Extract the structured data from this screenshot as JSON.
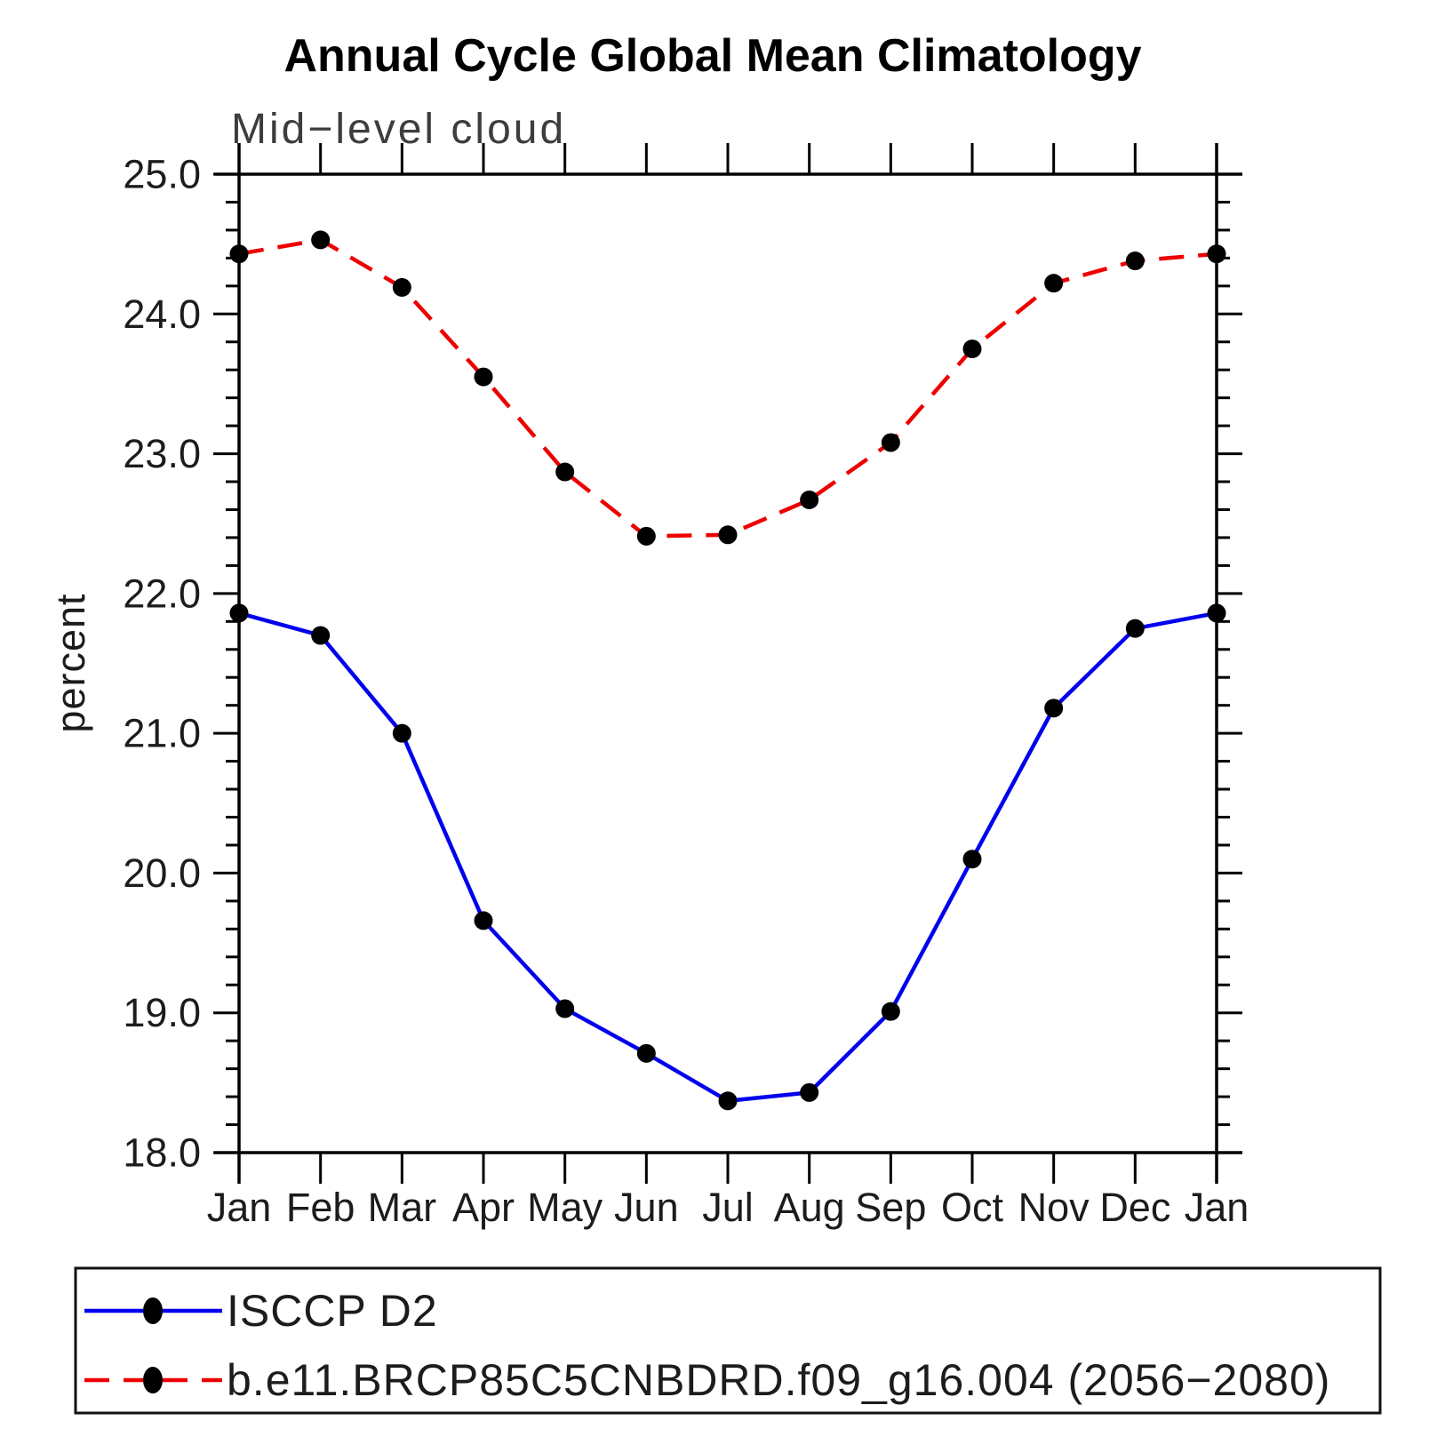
{
  "chart_data": {
    "type": "line",
    "title": "Annual Cycle Global Mean Climatology",
    "subtitle": "Mid−level cloud",
    "xlabel": "",
    "ylabel": "percent",
    "categories": [
      "Jan",
      "Feb",
      "Mar",
      "Apr",
      "May",
      "Jun",
      "Jul",
      "Aug",
      "Sep",
      "Oct",
      "Nov",
      "Dec",
      "Jan"
    ],
    "ylim": [
      18.0,
      25.0
    ],
    "ytick_major_interval": 1.0,
    "ytick_minor_interval": 0.2,
    "yticks": [
      {
        "value": 25.0,
        "label": "25.0"
      },
      {
        "value": 24.0,
        "label": "24.0"
      },
      {
        "value": 23.0,
        "label": "23.0"
      },
      {
        "value": 22.0,
        "label": "22.0"
      },
      {
        "value": 21.0,
        "label": "21.0"
      },
      {
        "value": 20.0,
        "label": "20.0"
      },
      {
        "value": 19.0,
        "label": "19.0"
      },
      {
        "value": 18.0,
        "label": "18.0"
      }
    ],
    "grid": false,
    "legend_position": "bottom-left-box",
    "series": [
      {
        "name": "ISCCP D2",
        "line_style": "solid",
        "line_color": "#0000ee",
        "marker": "filled-circle",
        "marker_color": "#000000",
        "values": [
          21.86,
          21.7,
          21.0,
          19.66,
          19.03,
          18.71,
          18.37,
          18.43,
          19.01,
          20.1,
          21.18,
          21.75,
          21.86
        ]
      },
      {
        "name": "b.e11.BRCP85C5CNBDRD.f09_g16.004 (2056−2080)",
        "line_style": "dashed",
        "line_color": "#ee0000",
        "marker": "filled-circle",
        "marker_color": "#000000",
        "values": [
          24.43,
          24.53,
          24.19,
          23.55,
          22.87,
          22.41,
          22.42,
          22.67,
          23.08,
          23.75,
          24.22,
          24.38,
          24.43
        ]
      }
    ],
    "axis_color": "#000000"
  }
}
